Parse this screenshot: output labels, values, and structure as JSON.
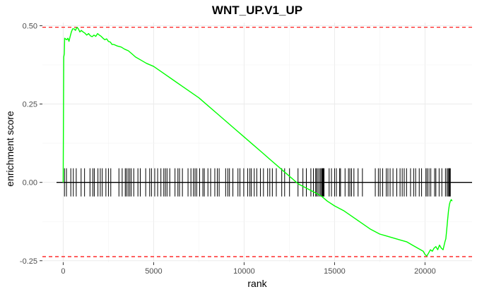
{
  "chart_data": {
    "type": "line",
    "title": "WNT_UP.V1_UP",
    "xlabel": "rank",
    "ylabel": "enrichment score",
    "xlim": [
      -1150,
      22600
    ],
    "ylim": [
      -0.255,
      0.51
    ],
    "x_ticks": [
      0,
      5000,
      10000,
      15000,
      20000
    ],
    "x_tick_labels": [
      "0",
      "5000",
      "10000",
      "15000",
      "20000"
    ],
    "y_ticks": [
      -0.25,
      0,
      0.25,
      0.5
    ],
    "y_tick_labels": [
      "-0.25",
      "0.00",
      "0.25",
      "0.50"
    ],
    "grid": true,
    "series": [
      {
        "color": "#00ff00",
        "x": [
          0,
          30,
          60,
          80,
          120,
          200,
          260,
          320,
          380,
          450,
          520,
          600,
          680,
          760,
          840,
          920,
          1000,
          1100,
          1200,
          1300,
          1400,
          1500,
          1600,
          1700,
          1800,
          1900,
          2000,
          2100,
          2200,
          2300,
          2400,
          2500,
          2600,
          2700,
          2800,
          3000,
          3200,
          3400,
          3600,
          3800,
          4000,
          4300,
          4600,
          5000,
          5500,
          6000,
          6500,
          7000,
          7500,
          8000,
          8500,
          9000,
          9500,
          10000,
          10500,
          11000,
          11500,
          12000,
          12500,
          13000,
          13500,
          14000,
          14300,
          14600,
          15000,
          15500,
          16000,
          16500,
          17000,
          17500,
          17800,
          18100,
          18400,
          18700,
          19000,
          19300,
          19600,
          19900,
          20000,
          20100,
          20200,
          20300,
          20400,
          20500,
          20600,
          20700,
          20800,
          20900,
          21000,
          21100,
          21150,
          21200,
          21250,
          21300,
          21350,
          21400,
          21450,
          21500
        ],
        "y": [
          0.0,
          0.4,
          0.41,
          0.46,
          0.458,
          0.455,
          0.46,
          0.45,
          0.465,
          0.48,
          0.49,
          0.49,
          0.485,
          0.495,
          0.49,
          0.48,
          0.485,
          0.48,
          0.476,
          0.47,
          0.475,
          0.468,
          0.465,
          0.47,
          0.466,
          0.475,
          0.47,
          0.466,
          0.46,
          0.455,
          0.458,
          0.45,
          0.448,
          0.44,
          0.44,
          0.435,
          0.432,
          0.425,
          0.42,
          0.41,
          0.4,
          0.39,
          0.38,
          0.37,
          0.35,
          0.33,
          0.31,
          0.29,
          0.27,
          0.245,
          0.22,
          0.195,
          0.17,
          0.145,
          0.12,
          0.095,
          0.07,
          0.045,
          0.02,
          -0.005,
          -0.02,
          -0.035,
          -0.045,
          -0.06,
          -0.075,
          -0.09,
          -0.11,
          -0.13,
          -0.15,
          -0.165,
          -0.17,
          -0.175,
          -0.18,
          -0.185,
          -0.19,
          -0.2,
          -0.21,
          -0.22,
          -0.23,
          -0.235,
          -0.225,
          -0.215,
          -0.22,
          -0.21,
          -0.205,
          -0.215,
          -0.2,
          -0.21,
          -0.215,
          -0.19,
          -0.18,
          -0.15,
          -0.12,
          -0.09,
          -0.07,
          -0.06,
          -0.055,
          -0.06
        ]
      }
    ],
    "reference_lines": [
      {
        "y": 0.495,
        "color": "#ff0000",
        "style": "dashed"
      },
      {
        "y": -0.237,
        "color": "#ff0000",
        "style": "dashed"
      },
      {
        "y": 0,
        "color": "#000000",
        "style": "solid"
      }
    ],
    "rug": {
      "y_range": [
        -0.045,
        0.045
      ],
      "color": "#000000",
      "positions": [
        70,
        180,
        420,
        560,
        720,
        990,
        1180,
        1480,
        1640,
        1720,
        1920,
        2050,
        2160,
        2360,
        2500,
        2630,
        3080,
        3260,
        3430,
        3500,
        3590,
        3680,
        3760,
        3900,
        4130,
        4260,
        4560,
        4780,
        4880,
        5060,
        5220,
        5400,
        5560,
        5650,
        5740,
        5890,
        6180,
        6340,
        6430,
        6590,
        6900,
        7060,
        7200,
        7290,
        7380,
        7540,
        7720,
        7800,
        8000,
        8150,
        8380,
        8520,
        8620,
        8980,
        9100,
        9190,
        9380,
        9660,
        9770,
        9980,
        10200,
        10320,
        10400,
        10560,
        10700,
        10900,
        11070,
        11300,
        11420,
        11560,
        11780,
        12080,
        12240,
        12510,
        12980,
        13250,
        13440,
        13690,
        13830,
        13960,
        14000,
        14080,
        14160,
        14230,
        14290,
        14320,
        14360,
        14380,
        14420,
        14700,
        14830,
        15000,
        15100,
        15280,
        15330,
        15580,
        15770,
        15850,
        15940,
        16070,
        16300,
        16540,
        17250,
        17420,
        17520,
        17660,
        17860,
        17950,
        18070,
        18230,
        18440,
        18620,
        18740,
        18850,
        18980,
        19200,
        19370,
        19480,
        19680,
        19810,
        20050,
        20120,
        20220,
        20320,
        20530,
        20600,
        20780,
        20930,
        21130,
        21220,
        21280,
        21330,
        21360,
        21400
      ]
    }
  }
}
